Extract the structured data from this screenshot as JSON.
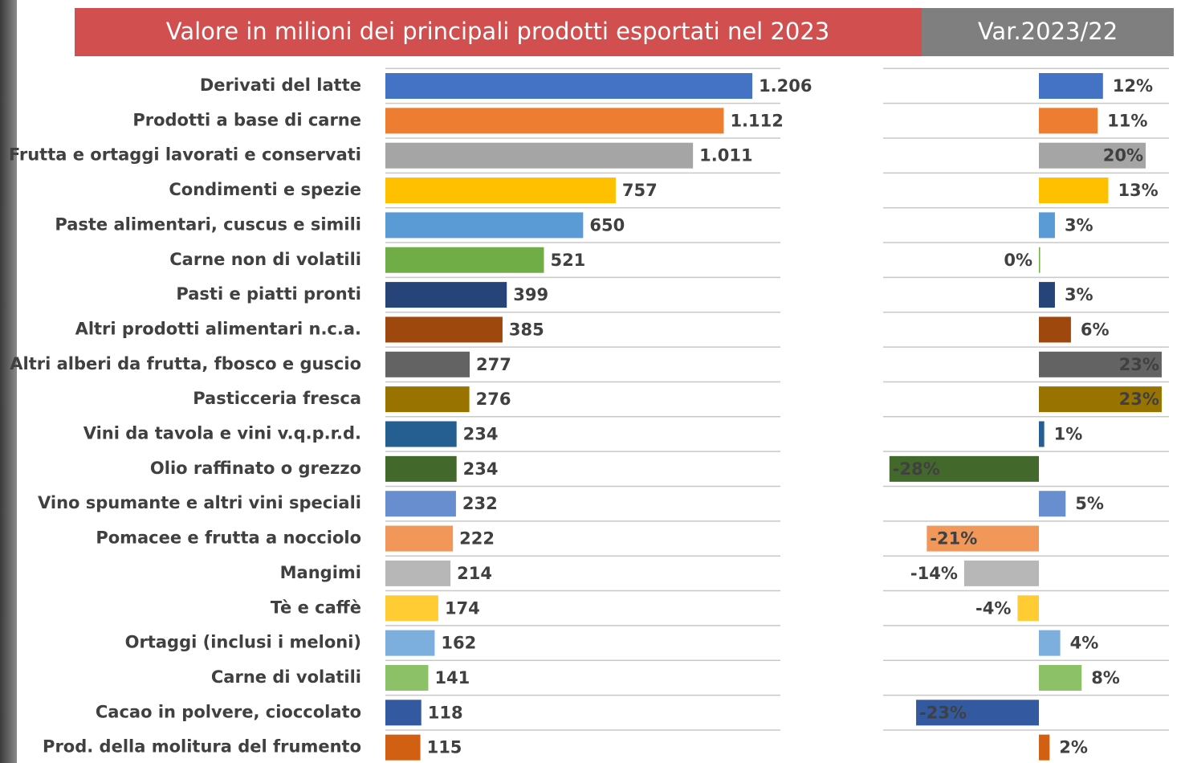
{
  "chart_data": [
    {
      "type": "bar",
      "orientation": "horizontal",
      "title": "Valore in milioni dei principali prodotti esportati nel 2023",
      "title_color": "#d24f4f",
      "categories": [
        "Derivati del latte",
        "Prodotti a base di carne",
        "Frutta e ortaggi lavorati e conservati",
        "Condimenti e spezie",
        "Paste alimentari, cuscus e  simili",
        "Carne non di volatili",
        "Pasti e piatti pronti",
        "Altri prodotti alimentari n.c.a.",
        "Altri alberi da frutta, fbosco e guscio",
        "Pasticceria fresca",
        "Vini da tavola e vini v.q.p.r.d.",
        "Olio raffinato o grezzo",
        "Vino spumante e altri vini speciali",
        "Pomacee e frutta a nocciolo",
        "Mangimi",
        "Tè e caffè",
        "Ortaggi (inclusi i meloni)",
        "Carne di volatili",
        "Cacao in polvere, cioccolato",
        "Prod. della molitura del frumento"
      ],
      "values": [
        1206,
        1112,
        1011,
        757,
        650,
        521,
        399,
        385,
        277,
        276,
        234,
        234,
        232,
        222,
        214,
        174,
        162,
        141,
        118,
        115
      ],
      "value_labels": [
        "1.206",
        "1.112",
        "1.011",
        "757",
        "650",
        "521",
        "399",
        "385",
        "277",
        "276",
        "234",
        "234",
        "232",
        "222",
        "214",
        "174",
        "162",
        "141",
        "118",
        "115"
      ],
      "colors": [
        "#4472c4",
        "#ed7d31",
        "#a5a5a5",
        "#ffc000",
        "#5b9bd5",
        "#70ad47",
        "#264478",
        "#9e480e",
        "#636363",
        "#997300",
        "#255e91",
        "#43682b",
        "#698ed0",
        "#f1975a",
        "#b7b7b7",
        "#ffcd33",
        "#7cafdd",
        "#8cc168",
        "#335aa1",
        "#d26012"
      ]
    },
    {
      "type": "bar",
      "orientation": "horizontal",
      "title": "Var.2023/22",
      "title_color": "#7f7f7f",
      "values": [
        12,
        11,
        20,
        13,
        3,
        0,
        3,
        6,
        23,
        23,
        1,
        -28,
        5,
        -21,
        -14,
        -4,
        4,
        8,
        -23,
        2
      ],
      "value_labels": [
        "12%",
        "11%",
        "20%",
        "13%",
        "3%",
        "0%",
        "3%",
        "6%",
        "23%",
        "23%",
        "1%",
        "-28%",
        "5%",
        "-21%",
        "-14%",
        "-4%",
        "4%",
        "8%",
        "-23%",
        "2%"
      ],
      "colors": [
        "#4472c4",
        "#ed7d31",
        "#a5a5a5",
        "#ffc000",
        "#5b9bd5",
        "#70ad47",
        "#264478",
        "#9e480e",
        "#636363",
        "#997300",
        "#255e91",
        "#43682b",
        "#698ed0",
        "#f1975a",
        "#b7b7b7",
        "#ffcd33",
        "#7cafdd",
        "#8cc168",
        "#335aa1",
        "#d26012"
      ]
    }
  ]
}
